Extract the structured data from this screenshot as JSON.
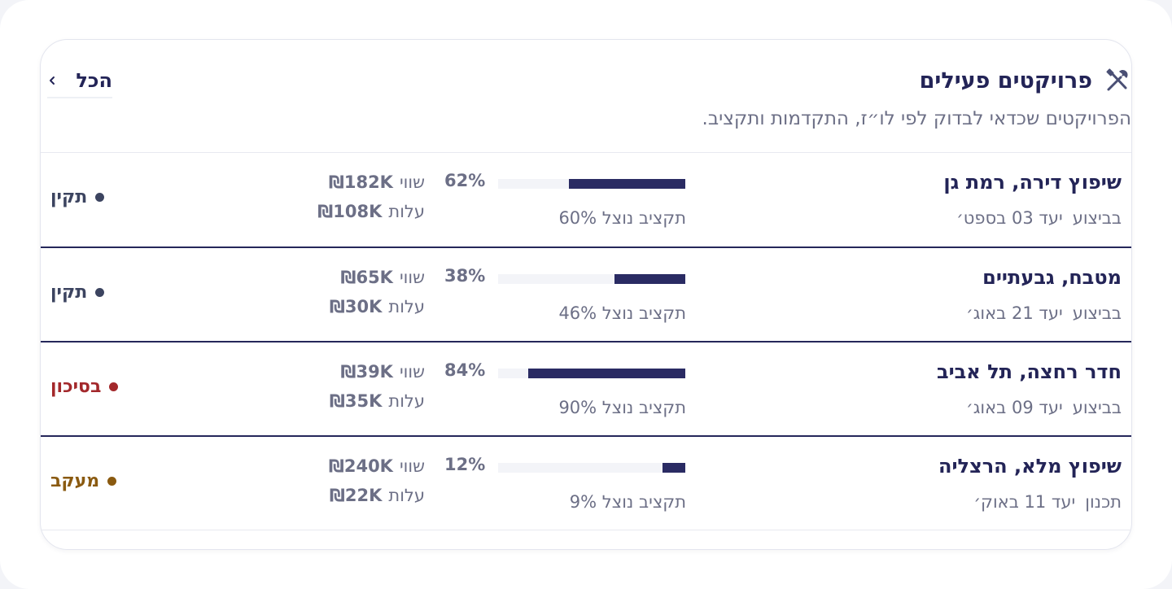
{
  "header": {
    "title": "פרויקטים פעילים",
    "subtitle": "הפרויקטים שכדאי לבדוק לפי לו״ז, התקדמות ותקציב.",
    "all_label": "הכל",
    "icon": "tools-icon"
  },
  "colors": {
    "primary": "#232457",
    "bar": "#2a2b63",
    "track": "#f3f4f8",
    "muted": "#6c6f86",
    "ok": "#3c4460",
    "risk": "#a3282b",
    "delay": "#8a5a10"
  },
  "projects": [
    {
      "name": "שיפוץ דירה, רמת גן",
      "phase": "בביצוע",
      "due": "יעד 03 בספט׳",
      "progress_label": "62%",
      "progress": 0.62,
      "budget_label": "תקציב נוצל 60%",
      "worth_label": "שווי",
      "worth": "₪182K",
      "cost_label": "עלות",
      "cost": "₪108K",
      "status": "תקין",
      "status_color": "#3c4460"
    },
    {
      "name": "מטבח, גבעתיים",
      "phase": "בביצוע",
      "due": "יעד 21 באוג׳",
      "progress_label": "38%",
      "progress": 0.38,
      "budget_label": "תקציב נוצל 46%",
      "worth_label": "שווי",
      "worth": "₪65K",
      "cost_label": "עלות",
      "cost": "₪30K",
      "status": "תקין",
      "status_color": "#3c4460"
    },
    {
      "name": "חדר רחצה, תל אביב",
      "phase": "בביצוע",
      "due": "יעד 09 באוג׳",
      "progress_label": "84%",
      "progress": 0.84,
      "budget_label": "תקציב נוצל 90%",
      "worth_label": "שווי",
      "worth": "₪39K",
      "cost_label": "עלות",
      "cost": "₪35K",
      "status": "בסיכון",
      "status_color": "#a3282b"
    },
    {
      "name": "שיפוץ מלא, הרצליה",
      "phase": "תכנון",
      "due": "יעד 11 באוק׳",
      "progress_label": "12%",
      "progress": 0.12,
      "budget_label": "תקציב נוצל 9%",
      "worth_label": "שווי",
      "worth": "₪240K",
      "cost_label": "עלות",
      "cost": "₪22K",
      "status": "מעקב",
      "status_color": "#8a5a10"
    }
  ]
}
